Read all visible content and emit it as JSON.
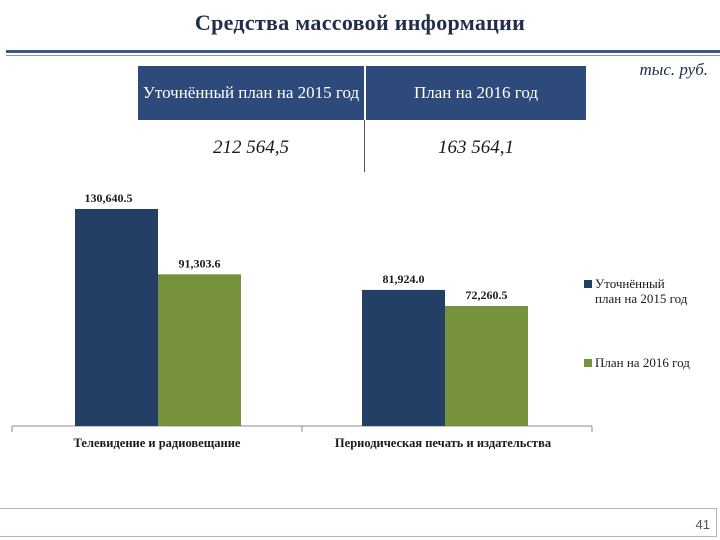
{
  "title": "Средства массовой информации",
  "unit": "тыс. руб.",
  "summary": {
    "headers": [
      "Уточнённый план на 2015 год",
      "План на 2016 год"
    ],
    "values": [
      "212 564,5",
      "163 564,1"
    ]
  },
  "chart_data": {
    "type": "bar",
    "categories": [
      "Телевидение и радиовещание",
      "Периодическая печать и издательства"
    ],
    "series": [
      {
        "name": "Уточнённый план на 2015 год",
        "values": [
          130640.5,
          81924.0
        ],
        "labels": [
          "130,640.5",
          "81,924.0"
        ],
        "color": "#243f66"
      },
      {
        "name": "План на 2016 год",
        "values": [
          91303.6,
          72260.5
        ],
        "labels": [
          "91,303.6",
          "72,260.5"
        ],
        "color": "#76923c"
      }
    ],
    "legend": "right",
    "grid": false
  },
  "page_number": "41"
}
